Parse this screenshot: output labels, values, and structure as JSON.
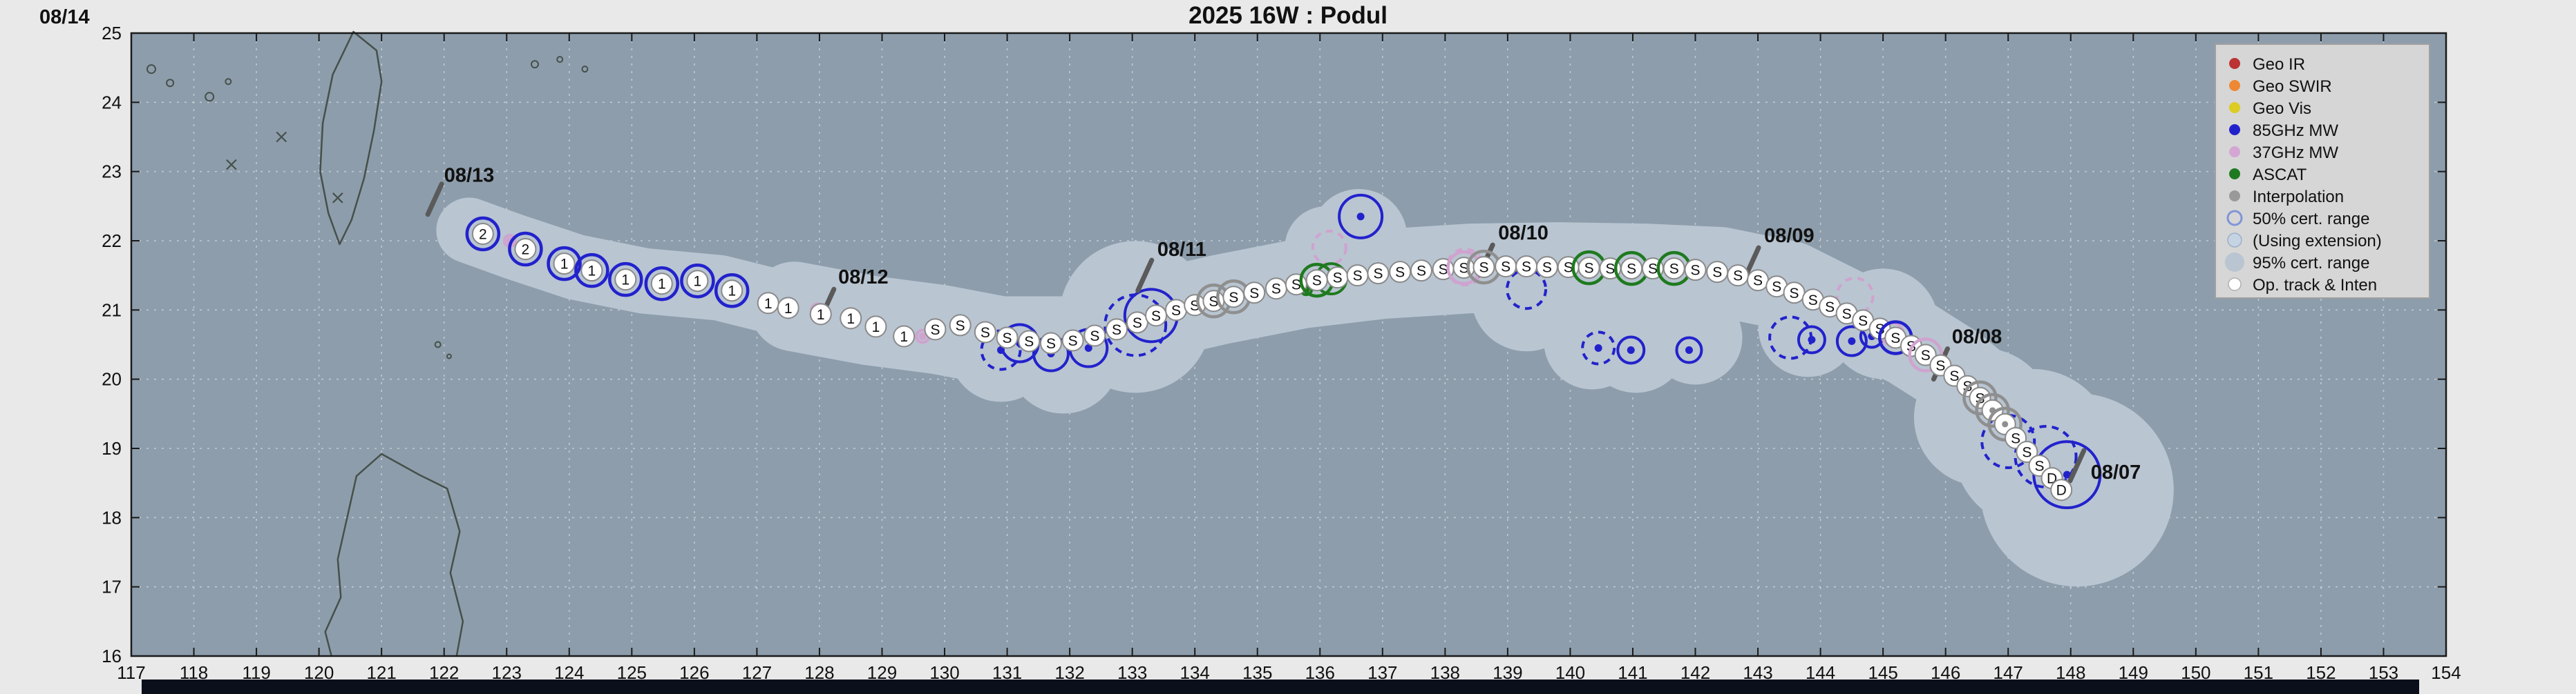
{
  "title": "2025  16W :  Podul",
  "corner_date": "08/14",
  "colors": {
    "page_bg": "#e9e9e9",
    "map_bg": "#8d9dab",
    "envelope": "#b9c5d1",
    "grid": "#cdd6de",
    "coast": "#46504a",
    "frame": "#1a1a1a",
    "blue": "#2222cc",
    "pink": "#cfa3cf",
    "green": "#1f7a1f",
    "gray": "#8f8f8f",
    "marker_fill": "#ffffff",
    "marker_stroke": "#8a8a8a",
    "marker_text": "#111111",
    "legend_bg": "#d6d6d6",
    "legend_border": "#a0a0a0",
    "date_tick": "#5a5a5a",
    "date_text": "#111111",
    "footer": "#0b0f1c",
    "tick_text": "#222222"
  },
  "axes": {
    "x_ticks": [
      117,
      118,
      119,
      120,
      121,
      122,
      123,
      124,
      125,
      126,
      127,
      128,
      129,
      130,
      131,
      132,
      133,
      134,
      135,
      136,
      137,
      138,
      139,
      140,
      141,
      142,
      143,
      144,
      145,
      146,
      147,
      148,
      149,
      150,
      151,
      152,
      153,
      154
    ],
    "y_ticks": [
      16,
      17,
      18,
      19,
      20,
      21,
      22,
      23,
      24,
      25
    ]
  },
  "legend": {
    "items": [
      {
        "label": "Geo IR",
        "swatch": "dot",
        "color": "#bb3333"
      },
      {
        "label": "Geo SWIR",
        "swatch": "dot",
        "color": "#ee8833"
      },
      {
        "label": "Geo Vis",
        "swatch": "dot",
        "color": "#ddcc22"
      },
      {
        "label": "85GHz MW",
        "swatch": "dot",
        "color": "#2222cc"
      },
      {
        "label": "37GHz MW",
        "swatch": "dot",
        "color": "#d4a6d4"
      },
      {
        "label": "ASCAT",
        "swatch": "dot",
        "color": "#1f7a1f"
      },
      {
        "label": "Interpolation",
        "swatch": "dot",
        "color": "#999999"
      },
      {
        "label": "50% cert. range",
        "swatch": "open",
        "color": "#8095d8"
      },
      {
        "label": "(Using extension)",
        "swatch": "fill",
        "color": "#c6d3e3"
      },
      {
        "label": "95% cert. range",
        "swatch": "fill-large",
        "color": "#b9c5d1"
      },
      {
        "label": "Op. track & Inten",
        "swatch": "dot-white",
        "color": "#ffffff"
      }
    ]
  },
  "chart_data": {
    "type": "scatter",
    "title": "2025 16W : Podul",
    "x_range": [
      117,
      154
    ],
    "y_range": [
      16,
      25
    ],
    "grid": true,
    "legend_position": "top-right",
    "track_note": "Operational track points: lon, lat, intensity label (D=depression, S=storm, 1/2=category), ring color of coincident satellite fix",
    "track": [
      [
        122.62,
        22.1,
        "2",
        "blue"
      ],
      [
        123.3,
        21.88,
        "2",
        "blue"
      ],
      [
        123.92,
        21.67,
        "1",
        "blue"
      ],
      [
        124.36,
        21.57,
        "1",
        "blue"
      ],
      [
        124.9,
        21.44,
        "1",
        "blue"
      ],
      [
        125.48,
        21.38,
        "1",
        "blue"
      ],
      [
        126.05,
        21.42,
        "1",
        "blue"
      ],
      [
        126.6,
        21.28,
        "1",
        "blue"
      ],
      [
        127.18,
        21.1,
        "1",
        ""
      ],
      [
        127.5,
        21.03,
        "1",
        ""
      ],
      [
        128.02,
        20.94,
        "1",
        ""
      ],
      [
        128.5,
        20.88,
        "1",
        ""
      ],
      [
        128.9,
        20.76,
        "1",
        ""
      ],
      [
        129.35,
        20.62,
        "1",
        ""
      ],
      [
        129.85,
        20.72,
        "S",
        ""
      ],
      [
        130.25,
        20.78,
        "S",
        ""
      ],
      [
        130.65,
        20.68,
        "S",
        ""
      ],
      [
        131.0,
        20.6,
        "S",
        ""
      ],
      [
        131.35,
        20.55,
        "S",
        ""
      ],
      [
        131.7,
        20.52,
        "S",
        ""
      ],
      [
        132.05,
        20.56,
        "S",
        ""
      ],
      [
        132.4,
        20.63,
        "S",
        ""
      ],
      [
        132.75,
        20.72,
        "S",
        ""
      ],
      [
        133.08,
        20.82,
        "S",
        ""
      ],
      [
        133.38,
        20.92,
        "S",
        ""
      ],
      [
        133.7,
        21.0,
        "S",
        ""
      ],
      [
        134.0,
        21.07,
        "S",
        ""
      ],
      [
        134.3,
        21.13,
        "S",
        "gray"
      ],
      [
        134.62,
        21.19,
        "S",
        "gray"
      ],
      [
        134.95,
        21.25,
        "S",
        ""
      ],
      [
        135.3,
        21.31,
        "S",
        ""
      ],
      [
        135.62,
        21.37,
        "S",
        ""
      ],
      [
        135.95,
        21.43,
        "S",
        "green"
      ],
      [
        136.28,
        21.47,
        "S",
        ""
      ],
      [
        136.6,
        21.5,
        "S",
        ""
      ],
      [
        136.93,
        21.53,
        "S",
        ""
      ],
      [
        137.28,
        21.55,
        "S",
        ""
      ],
      [
        137.62,
        21.57,
        "S",
        ""
      ],
      [
        137.97,
        21.59,
        "S",
        ""
      ],
      [
        138.3,
        21.61,
        "S",
        "pink"
      ],
      [
        138.62,
        21.62,
        "S",
        "gray"
      ],
      [
        138.97,
        21.63,
        "S",
        ""
      ],
      [
        139.3,
        21.63,
        "S",
        ""
      ],
      [
        139.63,
        21.62,
        "S",
        ""
      ],
      [
        139.97,
        21.62,
        "S",
        ""
      ],
      [
        140.3,
        21.61,
        "S",
        "green"
      ],
      [
        140.64,
        21.6,
        "S",
        ""
      ],
      [
        140.98,
        21.6,
        "S",
        "green"
      ],
      [
        141.32,
        21.6,
        "S",
        ""
      ],
      [
        141.66,
        21.6,
        "S",
        "green"
      ],
      [
        142.0,
        21.58,
        "S",
        ""
      ],
      [
        142.35,
        21.55,
        "S",
        ""
      ],
      [
        142.68,
        21.5,
        "S",
        ""
      ],
      [
        143.0,
        21.43,
        "S",
        ""
      ],
      [
        143.3,
        21.34,
        "S",
        ""
      ],
      [
        143.58,
        21.25,
        "S",
        ""
      ],
      [
        143.88,
        21.15,
        "S",
        ""
      ],
      [
        144.15,
        21.05,
        "S",
        ""
      ],
      [
        144.42,
        20.95,
        "S",
        ""
      ],
      [
        144.68,
        20.85,
        "S",
        ""
      ],
      [
        144.95,
        20.73,
        "S",
        ""
      ],
      [
        145.2,
        20.6,
        "S",
        "blue"
      ],
      [
        145.45,
        20.48,
        "S",
        ""
      ],
      [
        145.68,
        20.35,
        "S",
        "pink"
      ],
      [
        145.92,
        20.2,
        "S",
        ""
      ],
      [
        146.14,
        20.05,
        "S",
        ""
      ],
      [
        146.35,
        19.9,
        "S",
        ""
      ],
      [
        146.55,
        19.73,
        "S",
        "gray"
      ],
      [
        146.75,
        19.55,
        "",
        "gray"
      ],
      [
        146.95,
        19.35,
        "",
        "gray"
      ],
      [
        147.12,
        19.15,
        "S",
        ""
      ],
      [
        147.3,
        18.95,
        "S",
        ""
      ],
      [
        147.5,
        18.75,
        "S",
        ""
      ],
      [
        147.7,
        18.57,
        "D",
        ""
      ],
      [
        147.85,
        18.4,
        "D",
        ""
      ]
    ],
    "fixes_note": "Satellite fix circles: lon, lat, radius px, color key (b=85GHz MW, p=37GHz MW, g=ASCAT, gy=interpolation), dashed flag, center-dot flag",
    "fixes": [
      [
        147.6,
        18.88,
        44,
        "b",
        1,
        0
      ],
      [
        147.0,
        19.1,
        38,
        "b",
        1,
        0
      ],
      [
        143.52,
        20.6,
        30,
        "b",
        1,
        0
      ],
      [
        140.45,
        20.45,
        23,
        "b",
        1,
        1
      ],
      [
        139.3,
        21.3,
        28,
        "b",
        1,
        0
      ],
      [
        133.05,
        20.78,
        44,
        "b",
        1,
        0
      ],
      [
        130.9,
        20.42,
        28,
        "b",
        1,
        1
      ],
      [
        144.55,
        21.2,
        26,
        "p",
        1,
        0
      ],
      [
        138.32,
        21.62,
        26,
        "p",
        1,
        0
      ],
      [
        136.15,
        21.9,
        24,
        "p",
        1,
        0
      ],
      [
        147.94,
        18.62,
        48,
        "b",
        0,
        1
      ],
      [
        144.5,
        20.55,
        21,
        "b",
        0,
        1
      ],
      [
        144.82,
        20.62,
        16,
        "b",
        0,
        1
      ],
      [
        143.86,
        20.57,
        19,
        "b",
        0,
        1
      ],
      [
        141.9,
        20.42,
        18,
        "b",
        0,
        1
      ],
      [
        140.97,
        20.42,
        19,
        "b",
        0,
        1
      ],
      [
        136.65,
        22.35,
        31,
        "b",
        0,
        1
      ],
      [
        133.3,
        20.92,
        38,
        "b",
        0,
        1
      ],
      [
        132.3,
        20.45,
        27,
        "b",
        0,
        1
      ],
      [
        131.7,
        20.37,
        25,
        "b",
        0,
        1
      ],
      [
        131.2,
        20.52,
        27,
        "b",
        0,
        1
      ],
      [
        130.65,
        20.64,
        7,
        "b",
        0,
        1
      ],
      [
        145.15,
        20.65,
        16,
        "p",
        0,
        1
      ],
      [
        129.65,
        20.62,
        9,
        "p",
        0,
        1
      ],
      [
        127.97,
        21.0,
        9,
        "p",
        0,
        1
      ],
      [
        123.05,
        22.0,
        8,
        "p",
        0,
        1
      ],
      [
        136.18,
        21.45,
        22,
        "g",
        0,
        1
      ],
      [
        135.78,
        21.3,
        8,
        "g",
        0,
        1
      ],
      [
        147.02,
        19.3,
        7,
        "gy",
        0,
        1
      ]
    ],
    "date_marks": [
      {
        "label": "08/13",
        "tick": [
          121.85,
          22.6
        ],
        "pos": [
          122.0,
          22.85
        ]
      },
      {
        "label": "08/12",
        "tick": [
          128.12,
          21.08
        ],
        "pos": [
          128.3,
          21.38
        ]
      },
      {
        "label": "08/11",
        "tick": [
          133.2,
          21.5
        ],
        "pos": [
          133.4,
          21.78
        ]
      },
      {
        "label": "08/10",
        "tick": [
          138.65,
          21.72
        ],
        "pos": [
          138.85,
          22.02
        ]
      },
      {
        "label": "08/09",
        "tick": [
          142.9,
          21.68
        ],
        "pos": [
          143.1,
          21.98
        ]
      },
      {
        "label": "08/08",
        "tick": [
          145.92,
          20.22
        ],
        "pos": [
          146.1,
          20.52
        ]
      },
      {
        "label": "08/07",
        "tick": [
          148.1,
          18.75
        ],
        "pos": [
          148.32,
          18.56
        ]
      }
    ],
    "envelope": {
      "main_path": [
        [
          148.55,
          18.1
        ],
        [
          148.0,
          18.55
        ],
        [
          147.4,
          19.1
        ],
        [
          146.7,
          19.7
        ],
        [
          146.1,
          20.15
        ],
        [
          145.4,
          20.55
        ],
        [
          144.5,
          20.9
        ],
        [
          143.5,
          21.35
        ],
        [
          142.4,
          21.55
        ],
        [
          141.2,
          21.6
        ],
        [
          139.8,
          21.62
        ],
        [
          138.4,
          21.6
        ],
        [
          137.0,
          21.52
        ],
        [
          135.7,
          21.38
        ],
        [
          134.4,
          21.15
        ],
        [
          133.2,
          20.9
        ],
        [
          132.0,
          20.55
        ],
        [
          130.9,
          20.55
        ],
        [
          129.9,
          20.72
        ],
        [
          128.8,
          20.85
        ],
        [
          127.6,
          21.05
        ]
      ],
      "main_width": 130,
      "tail_path": [
        [
          127.6,
          21.05
        ],
        [
          126.4,
          21.32
        ],
        [
          125.2,
          21.42
        ],
        [
          124.1,
          21.62
        ],
        [
          123.1,
          21.92
        ],
        [
          122.4,
          22.15
        ]
      ],
      "tail_width": 95,
      "bulges": [
        [
          148.1,
          18.4,
          140
        ],
        [
          147.4,
          19.0,
          115
        ],
        [
          146.6,
          19.45,
          100
        ],
        [
          136.62,
          22.05,
          70
        ],
        [
          136.1,
          21.9,
          60
        ],
        [
          133.05,
          20.9,
          110
        ],
        [
          131.9,
          20.32,
          82
        ],
        [
          130.9,
          20.42,
          75
        ],
        [
          141.05,
          20.55,
          75
        ],
        [
          140.35,
          20.55,
          70
        ],
        [
          142.0,
          20.6,
          68
        ],
        [
          143.8,
          20.75,
          72
        ],
        [
          145.0,
          20.8,
          80
        ],
        [
          139.3,
          21.2,
          80
        ]
      ]
    },
    "coastlines": {
      "taiwan": [
        [
          120.55,
          25.02
        ],
        [
          120.92,
          24.75
        ],
        [
          121.0,
          24.3
        ],
        [
          120.88,
          23.6
        ],
        [
          120.72,
          22.9
        ],
        [
          120.52,
          22.3
        ],
        [
          120.33,
          21.95
        ],
        [
          120.15,
          22.4
        ],
        [
          120.02,
          23.0
        ],
        [
          120.06,
          23.7
        ],
        [
          120.22,
          24.4
        ],
        [
          120.55,
          25.02
        ]
      ],
      "luzon": [
        [
          120.2,
          16.0
        ],
        [
          120.1,
          16.35
        ],
        [
          120.35,
          16.85
        ],
        [
          120.3,
          17.4
        ],
        [
          120.45,
          18.0
        ],
        [
          120.6,
          18.6
        ],
        [
          121.0,
          18.92
        ],
        [
          121.6,
          18.62
        ],
        [
          122.05,
          18.42
        ],
        [
          122.25,
          17.8
        ],
        [
          122.1,
          17.2
        ],
        [
          122.3,
          16.5
        ],
        [
          122.2,
          16.0
        ]
      ],
      "islands": [
        [
          117.32,
          24.48,
          6
        ],
        [
          117.62,
          24.28,
          5
        ],
        [
          118.25,
          24.08,
          6
        ],
        [
          118.55,
          24.3,
          4
        ],
        [
          123.45,
          24.55,
          5
        ],
        [
          123.85,
          24.62,
          4
        ],
        [
          124.25,
          24.48,
          4
        ],
        [
          121.9,
          20.5,
          4
        ],
        [
          122.08,
          20.33,
          3
        ]
      ],
      "x_marks": [
        [
          119.4,
          23.5
        ],
        [
          120.3,
          22.62
        ],
        [
          118.6,
          23.1
        ]
      ]
    }
  }
}
